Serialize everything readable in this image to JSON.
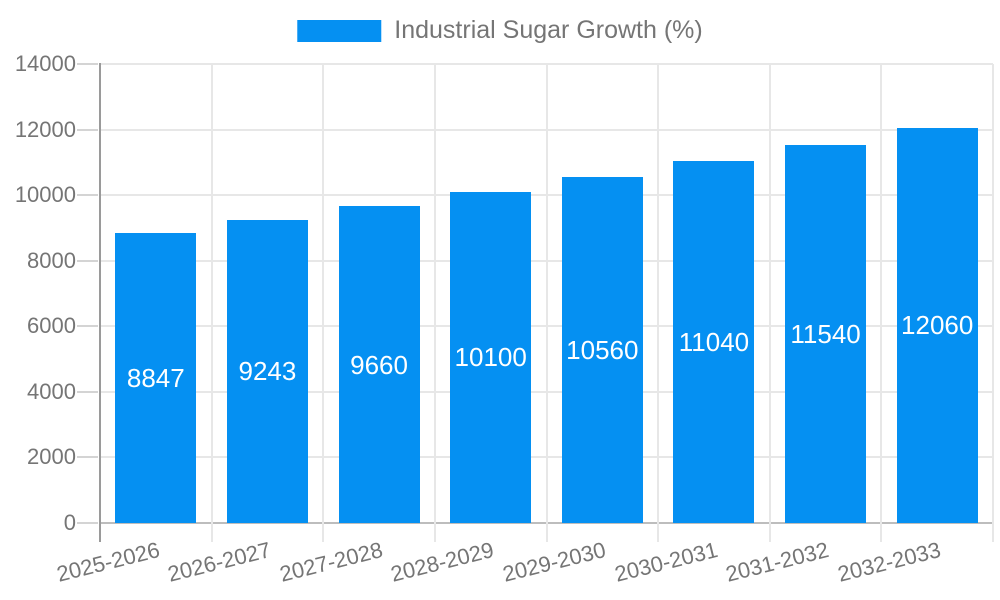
{
  "legend": {
    "label": "Industrial Sugar Growth (%)"
  },
  "chart_data": {
    "type": "bar",
    "title": "",
    "xlabel": "",
    "ylabel": "",
    "categories": [
      "2025-2026",
      "2026-2027",
      "2027-2028",
      "2028-2029",
      "2029-2030",
      "2030-2031",
      "2031-2032",
      "2032-2033"
    ],
    "values": [
      8847,
      9243,
      9660,
      10100,
      10560,
      11040,
      11540,
      12060
    ],
    "series_name": "Industrial Sugar Growth (%)",
    "bar_labels": [
      "8847",
      "9243",
      "9660",
      "10100",
      "10560",
      "11040",
      "11540",
      "12060"
    ],
    "ylim": [
      0,
      14000
    ],
    "yticks": [
      0,
      2000,
      4000,
      6000,
      8000,
      10000,
      12000,
      14000
    ],
    "ytick_labels": [
      "0",
      "2000",
      "4000",
      "6000",
      "8000",
      "10000",
      "12000",
      "14000"
    ],
    "grid": true,
    "legend_position": "top",
    "x_label_rotation_deg": -14,
    "colors": {
      "bar": "#0590F2",
      "bar_label_text": "#ffffff",
      "axis_text": "#757575",
      "gridline": "#e7e7e7",
      "baseline": "#bdbdbd",
      "tick": "#d4d4d4",
      "y_axis_line": "#9a9a9a"
    }
  }
}
